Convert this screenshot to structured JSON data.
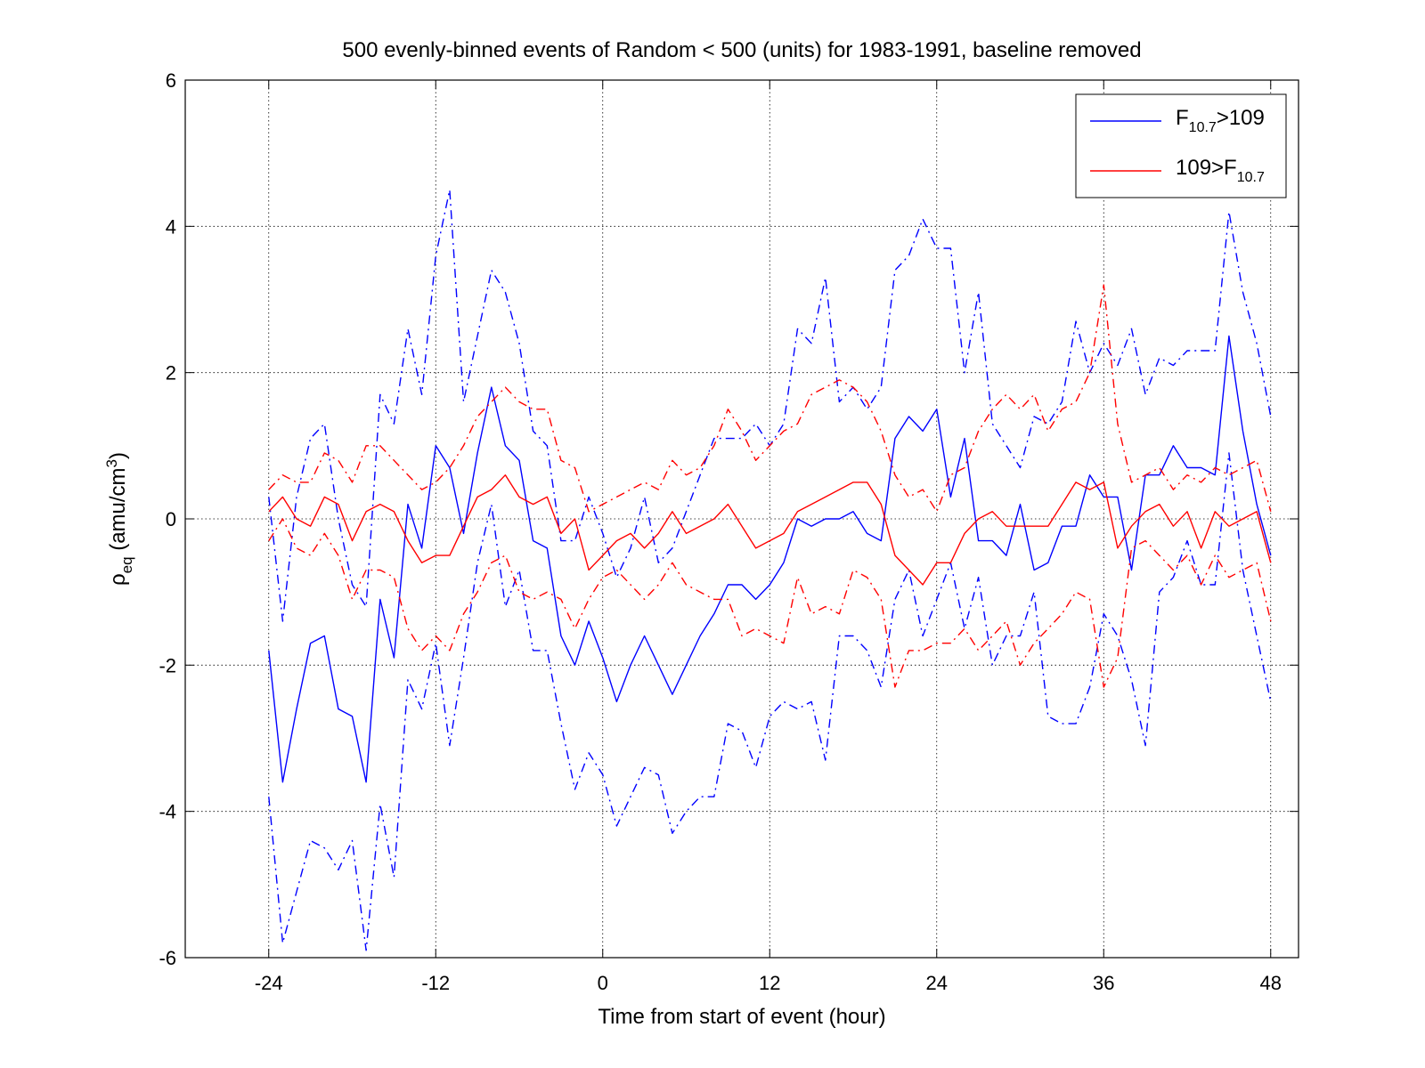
{
  "chart_data": {
    "type": "line",
    "title": "500 evenly-binned events of Random < 500 (units) for 1983-1991, baseline removed",
    "xlabel": "Time from start of event (hour)",
    "ylabel": "ρ_eq (amu/cm^3)",
    "ylabel_parts": {
      "main": "ρ",
      "sub": "eq",
      "rest": " (amu/cm",
      "sup": "3",
      "close": ")"
    },
    "xlim": [
      -30,
      50
    ],
    "ylim": [
      -6,
      6
    ],
    "xticks": [
      -24,
      -12,
      0,
      12,
      24,
      36,
      48
    ],
    "xtick_labels": [
      "-24",
      "-12",
      "0",
      "12",
      "24",
      "36",
      "48"
    ],
    "yticks": [
      -6,
      -4,
      -2,
      0,
      2,
      4,
      6
    ],
    "ytick_labels": [
      "-6",
      "-4",
      "-2",
      "0",
      "2",
      "4",
      "6"
    ],
    "grid": true,
    "legend_position": "top-right",
    "legend": [
      {
        "pre": "F",
        "sub": "10.7",
        "post": ">109",
        "color": "#0000ff"
      },
      {
        "pre": "109>F",
        "sub": "10.7",
        "post": "",
        "color": "#ff0000"
      }
    ],
    "x": [
      -24,
      -23,
      -22,
      -21,
      -20,
      -19,
      -18,
      -17,
      -16,
      -15,
      -14,
      -13,
      -12,
      -11,
      -10,
      -9,
      -8,
      -7,
      -6,
      -5,
      -4,
      -3,
      -2,
      -1,
      0,
      1,
      2,
      3,
      4,
      5,
      6,
      7,
      8,
      9,
      10,
      11,
      12,
      13,
      14,
      15,
      16,
      17,
      18,
      19,
      20,
      21,
      22,
      23,
      24,
      25,
      26,
      27,
      28,
      29,
      30,
      31,
      32,
      33,
      34,
      35,
      36,
      37,
      38,
      39,
      40,
      41,
      42,
      43,
      44,
      45,
      46,
      47,
      48
    ],
    "series": [
      {
        "color": "#0000ff",
        "style": "solid",
        "values": [
          -1.8,
          -3.6,
          -2.6,
          -1.7,
          -1.6,
          -2.6,
          -2.7,
          -3.6,
          -1.1,
          -1.9,
          0.2,
          -0.4,
          1.0,
          0.7,
          -0.2,
          0.9,
          1.8,
          1.0,
          0.8,
          -0.3,
          -0.4,
          -1.6,
          -2.0,
          -1.4,
          -1.9,
          -2.5,
          -2.0,
          -1.6,
          -2.0,
          -2.4,
          -2.0,
          -1.6,
          -1.3,
          -0.9,
          -0.9,
          -1.1,
          -0.9,
          -0.6,
          0.0,
          -0.1,
          0.0,
          0.0,
          0.1,
          -0.2,
          -0.3,
          1.1,
          1.4,
          1.2,
          1.5,
          0.3,
          1.1,
          -0.3,
          -0.3,
          -0.5,
          0.2,
          -0.7,
          -0.6,
          -0.1,
          -0.1,
          0.6,
          0.3,
          0.3,
          -0.7,
          0.6,
          0.6,
          1.0,
          0.7,
          0.7,
          0.6,
          2.5,
          1.2,
          0.2,
          -0.5
        ]
      },
      {
        "color": "#0000ff",
        "style": "dashdot",
        "values": [
          0.3,
          -1.4,
          0.3,
          1.1,
          1.3,
          0.0,
          -0.9,
          -1.2,
          1.7,
          1.3,
          2.6,
          1.7,
          3.6,
          4.5,
          1.6,
          2.5,
          3.4,
          3.1,
          2.4,
          1.2,
          1.0,
          -0.3,
          -0.3,
          0.3,
          -0.2,
          -0.8,
          -0.4,
          0.3,
          -0.6,
          -0.4,
          0.1,
          0.6,
          1.1,
          1.1,
          1.1,
          1.3,
          1.0,
          1.3,
          2.6,
          2.4,
          3.3,
          1.6,
          1.8,
          1.5,
          1.8,
          3.4,
          3.6,
          4.1,
          3.7,
          3.7,
          2.0,
          3.1,
          1.3,
          1.0,
          0.7,
          1.4,
          1.3,
          1.6,
          2.7,
          2.0,
          2.4,
          2.1,
          2.6,
          1.7,
          2.2,
          2.1,
          2.3,
          2.3,
          2.3,
          4.2,
          3.1,
          2.4,
          1.4
        ]
      },
      {
        "color": "#0000ff",
        "style": "dashdot",
        "values": [
          -3.8,
          -5.8,
          -5.1,
          -4.4,
          -4.5,
          -4.8,
          -4.4,
          -5.9,
          -3.9,
          -4.9,
          -2.2,
          -2.6,
          -1.7,
          -3.1,
          -1.9,
          -0.6,
          0.2,
          -1.2,
          -0.7,
          -1.8,
          -1.8,
          -2.8,
          -3.7,
          -3.2,
          -3.5,
          -4.2,
          -3.8,
          -3.4,
          -3.5,
          -4.3,
          -4.0,
          -3.8,
          -3.8,
          -2.8,
          -2.9,
          -3.4,
          -2.7,
          -2.5,
          -2.6,
          -2.5,
          -3.3,
          -1.6,
          -1.6,
          -1.8,
          -2.3,
          -1.1,
          -0.7,
          -1.6,
          -1.1,
          -0.6,
          -1.5,
          -0.8,
          -2.0,
          -1.6,
          -1.6,
          -1.0,
          -2.7,
          -2.8,
          -2.8,
          -2.3,
          -1.3,
          -1.6,
          -2.2,
          -3.1,
          -1.0,
          -0.8,
          -0.3,
          -0.9,
          -0.9,
          0.9,
          -0.7,
          -1.6,
          -2.5
        ]
      },
      {
        "color": "#ff0000",
        "style": "solid",
        "values": [
          0.1,
          0.3,
          0.0,
          -0.1,
          0.3,
          0.2,
          -0.3,
          0.1,
          0.2,
          0.1,
          -0.3,
          -0.6,
          -0.5,
          -0.5,
          -0.1,
          0.3,
          0.4,
          0.6,
          0.3,
          0.2,
          0.3,
          -0.2,
          0.0,
          -0.7,
          -0.5,
          -0.3,
          -0.2,
          -0.4,
          -0.2,
          0.1,
          -0.2,
          -0.1,
          0.0,
          0.2,
          -0.1,
          -0.4,
          -0.3,
          -0.2,
          0.1,
          0.2,
          0.3,
          0.4,
          0.5,
          0.5,
          0.2,
          -0.5,
          -0.7,
          -0.9,
          -0.6,
          -0.6,
          -0.2,
          0.0,
          0.1,
          -0.1,
          -0.1,
          -0.1,
          -0.1,
          0.2,
          0.5,
          0.4,
          0.5,
          -0.4,
          -0.1,
          0.1,
          0.2,
          -0.1,
          0.1,
          -0.4,
          0.1,
          -0.1,
          0.0,
          0.1,
          -0.6
        ]
      },
      {
        "color": "#ff0000",
        "style": "dashdot",
        "values": [
          0.4,
          0.6,
          0.5,
          0.5,
          0.9,
          0.8,
          0.5,
          1.0,
          1.0,
          0.8,
          0.6,
          0.4,
          0.5,
          0.7,
          1.0,
          1.4,
          1.6,
          1.8,
          1.6,
          1.5,
          1.5,
          0.8,
          0.7,
          0.1,
          0.2,
          0.3,
          0.4,
          0.5,
          0.4,
          0.8,
          0.6,
          0.7,
          1.0,
          1.5,
          1.2,
          0.8,
          1.0,
          1.2,
          1.3,
          1.7,
          1.8,
          1.9,
          1.8,
          1.6,
          1.2,
          0.6,
          0.3,
          0.4,
          0.1,
          0.6,
          0.7,
          1.2,
          1.5,
          1.7,
          1.5,
          1.7,
          1.2,
          1.5,
          1.6,
          2.0,
          3.2,
          1.3,
          0.5,
          0.6,
          0.7,
          0.4,
          0.6,
          0.5,
          0.7,
          0.6,
          0.7,
          0.8,
          0.1
        ]
      },
      {
        "color": "#ff0000",
        "style": "dashdot",
        "values": [
          -0.3,
          0.0,
          -0.4,
          -0.5,
          -0.2,
          -0.5,
          -1.1,
          -0.7,
          -0.7,
          -0.8,
          -1.5,
          -1.8,
          -1.6,
          -1.8,
          -1.3,
          -1.0,
          -0.6,
          -0.5,
          -1.0,
          -1.1,
          -1.0,
          -1.1,
          -1.5,
          -1.1,
          -0.8,
          -0.7,
          -0.9,
          -1.1,
          -0.9,
          -0.6,
          -0.9,
          -1.0,
          -1.1,
          -1.1,
          -1.6,
          -1.5,
          -1.6,
          -1.7,
          -0.8,
          -1.3,
          -1.2,
          -1.3,
          -0.7,
          -0.8,
          -1.1,
          -2.3,
          -1.8,
          -1.8,
          -1.7,
          -1.7,
          -1.5,
          -1.8,
          -1.6,
          -1.4,
          -2.0,
          -1.7,
          -1.5,
          -1.3,
          -1.0,
          -1.1,
          -2.3,
          -1.9,
          -0.4,
          -0.3,
          -0.5,
          -0.7,
          -0.5,
          -0.9,
          -0.5,
          -0.8,
          -0.7,
          -0.6,
          -1.4
        ]
      }
    ]
  }
}
